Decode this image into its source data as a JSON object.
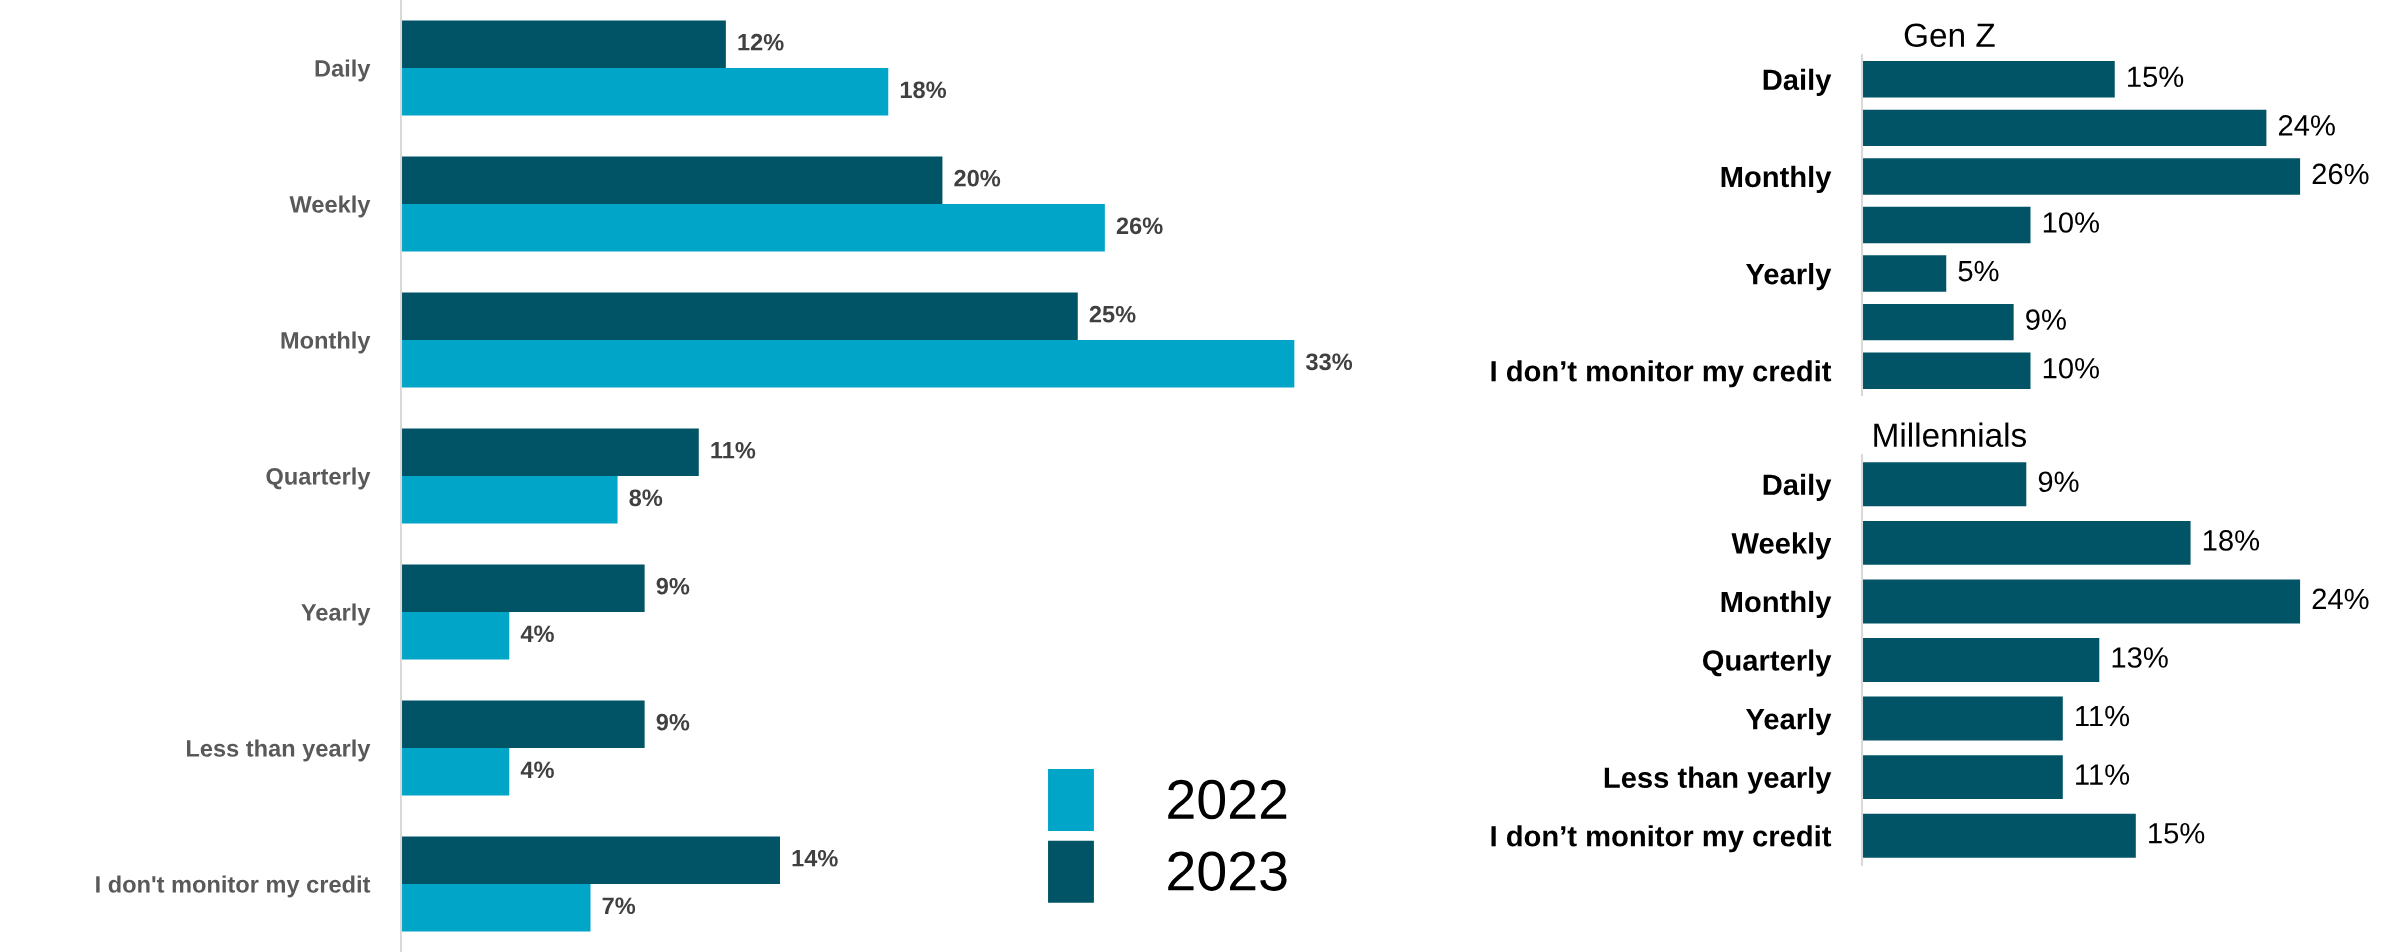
{
  "chart_data": [
    {
      "type": "bar",
      "orientation": "horizontal",
      "categories": [
        "Daily",
        "Weekly",
        "Monthly",
        "Quarterly",
        "Yearly",
        "Less than yearly",
        "I don't monitor my credit"
      ],
      "tick_labels": "y",
      "legend": "bottom right",
      "grid": false,
      "series": [
        {
          "name": "2022",
          "color": "#00a5c8",
          "values": [
            18,
            26,
            33,
            8,
            4,
            4,
            7
          ],
          "value_labels": [
            "18%",
            "26%",
            "33%",
            "8%",
            "4%",
            "4%",
            "7%"
          ]
        },
        {
          "name": "2023",
          "color": "#005466",
          "values": [
            12,
            20,
            25,
            11,
            9,
            9,
            14
          ],
          "value_labels": [
            "12%",
            "20%",
            "25%",
            "11%",
            "9%",
            "9%",
            "14%"
          ]
        }
      ]
    },
    {
      "type": "bar",
      "orientation": "horizontal",
      "title": "Gen Z",
      "categories": [
        "Daily",
        null,
        "Monthly",
        null,
        "Yearly",
        null,
        "I don’t monitor my credit"
      ],
      "tick_labels": "y",
      "grid": false,
      "series": [
        {
          "color": "#005466",
          "values": [
            15,
            24,
            26,
            10,
            5,
            9,
            10
          ],
          "value_labels": [
            "15%",
            "24%",
            "26%",
            "10%",
            "5%",
            "9%",
            "10%"
          ]
        }
      ]
    },
    {
      "type": "bar",
      "orientation": "horizontal",
      "title": "Millennials",
      "categories": [
        "Daily",
        "Weekly",
        "Monthly",
        "Quarterly",
        "Yearly",
        "Less than yearly",
        "I don’t monitor my credit"
      ],
      "tick_labels": "y",
      "grid": false,
      "series": [
        {
          "color": "#005466",
          "values": [
            9,
            18,
            24,
            13,
            11,
            11,
            15
          ],
          "value_labels": [
            "9%",
            "18%",
            "24%",
            "13%",
            "11%",
            "11%",
            "15%"
          ]
        }
      ]
    }
  ]
}
